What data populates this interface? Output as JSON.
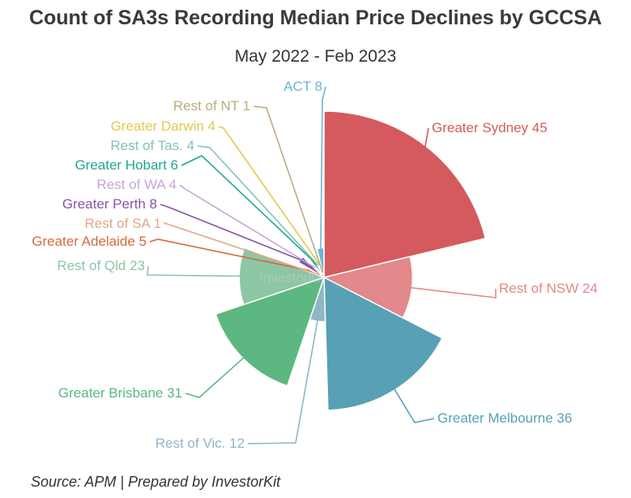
{
  "header": {
    "title": "Count of SA3s Recording Median Price Declines by GCCSA",
    "subtitle": "May 2022 - Feb 2023"
  },
  "footer": {
    "source": "Source: APM | Prepared by InvestorKit"
  },
  "watermark": {
    "text": "InvestorKit"
  },
  "chart_data": {
    "type": "pie",
    "variant": "variable-radius",
    "title": "Count of SA3s Recording Median Price Declines by GCCSA",
    "subtitle": "May 2022 - Feb 2023",
    "slices": [
      {
        "label": "Greater Sydney",
        "value": 45,
        "color": "#d45a5e"
      },
      {
        "label": "Rest of NSW",
        "value": 24,
        "color": "#e2898b"
      },
      {
        "label": "Greater Melbourne",
        "value": 36,
        "color": "#57a0b6"
      },
      {
        "label": "Rest of Vic.",
        "value": 12,
        "color": "#8fb6c5"
      },
      {
        "label": "Greater Brisbane",
        "value": 31,
        "color": "#5cb880"
      },
      {
        "label": "Rest of Qld",
        "value": 23,
        "color": "#8cc6a5"
      },
      {
        "label": "Greater Adelaide",
        "value": 5,
        "color": "#d9683a"
      },
      {
        "label": "Rest of SA",
        "value": 1,
        "color": "#e3a78a"
      },
      {
        "label": "Greater Perth",
        "value": 8,
        "color": "#8854a6"
      },
      {
        "label": "Rest of WA",
        "value": 4,
        "color": "#c9a5d6"
      },
      {
        "label": "Greater Hobart",
        "value": 6,
        "color": "#24a690"
      },
      {
        "label": "Rest of Tas.",
        "value": 4,
        "color": "#7fc4b7"
      },
      {
        "label": "Greater Darwin",
        "value": 4,
        "color": "#e3c84e"
      },
      {
        "label": "Rest of NT",
        "value": 1,
        "color": "#c0aa80"
      },
      {
        "label": "ACT",
        "value": 8,
        "color": "#6bb4d4"
      }
    ]
  }
}
